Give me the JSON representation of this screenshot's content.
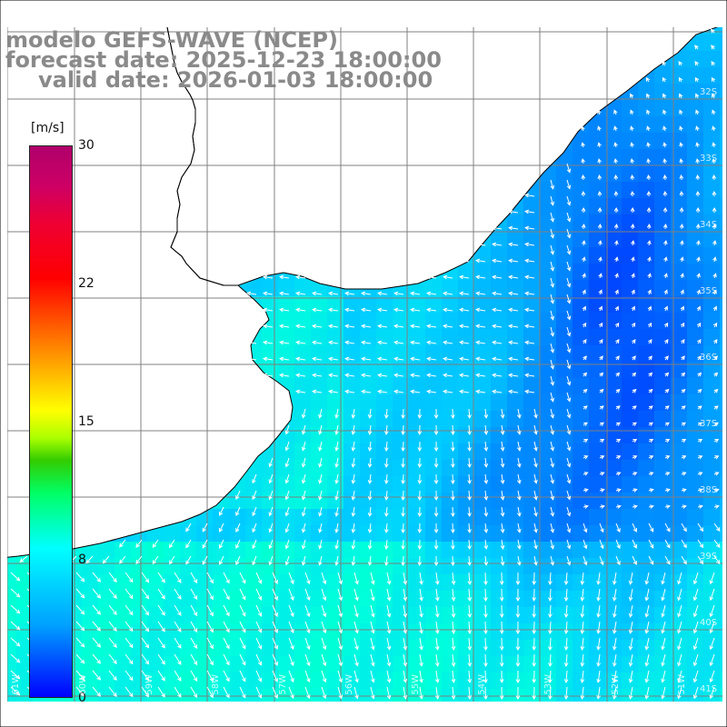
{
  "title": {
    "line1": "modelo GEFS-WAVE (NCEP)",
    "line2": "forecast date: 2025-12-23 18:00:00",
    "line3": "valid date: 2026-01-03 18:00:00"
  },
  "colorbar": {
    "units": "[m/s]",
    "ticks": [
      "30",
      "22",
      "15",
      "8",
      "0"
    ],
    "min": 0,
    "max": 30
  },
  "lat_labels": [
    "32S",
    "33S",
    "34S",
    "35S",
    "36S",
    "37S",
    "38S",
    "39S",
    "40S",
    "41S"
  ],
  "lon_labels": [
    "61W",
    "60W",
    "59W",
    "58W",
    "57W",
    "56W",
    "55W",
    "54W",
    "53W",
    "52W",
    "51W"
  ],
  "colors": {
    "land": "#ffffff",
    "coastline": "#000000",
    "grid": "#808080",
    "arrows": "#ffffff",
    "title": "#8a8a8a"
  }
}
